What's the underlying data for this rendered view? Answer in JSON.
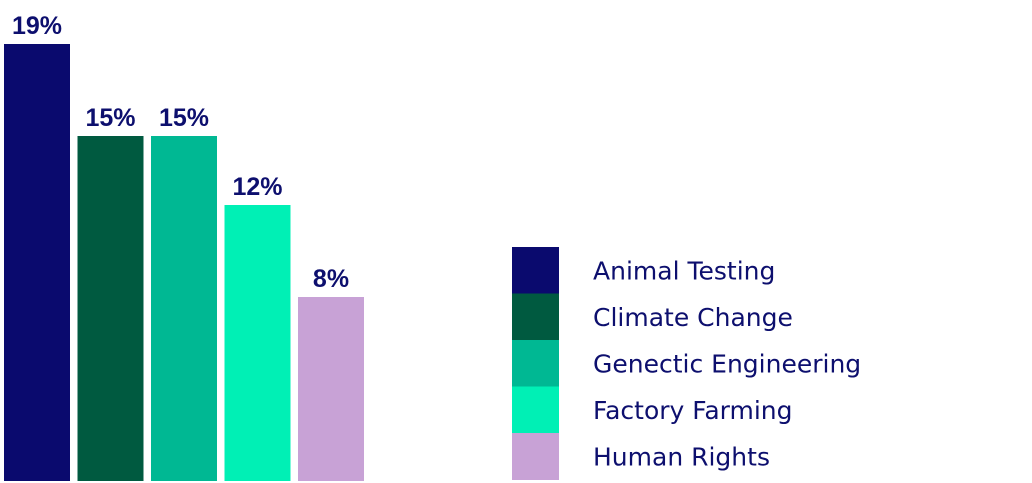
{
  "colors": {
    "text": "#0d0f6e"
  },
  "chart_data": {
    "type": "bar",
    "categories": [
      "Animal Testing",
      "Climate Change",
      "Genectic Engineering",
      "Factory Farming",
      "Human Rights"
    ],
    "values": [
      19,
      15,
      15,
      12,
      8
    ],
    "value_labels": [
      "19%",
      "15%",
      "15%",
      "12%",
      "8%"
    ],
    "colors": [
      "#0a0a6e",
      "#005a40",
      "#00b893",
      "#00f0b5",
      "#c8a2d6"
    ],
    "title": "",
    "xlabel": "",
    "ylabel": "",
    "ylim": [
      0,
      19
    ],
    "grid": false,
    "legend": {
      "position": "right",
      "entries": [
        "Animal Testing",
        "Climate Change",
        "Genectic Engineering",
        "Factory Farming",
        "Human Rights"
      ]
    }
  }
}
